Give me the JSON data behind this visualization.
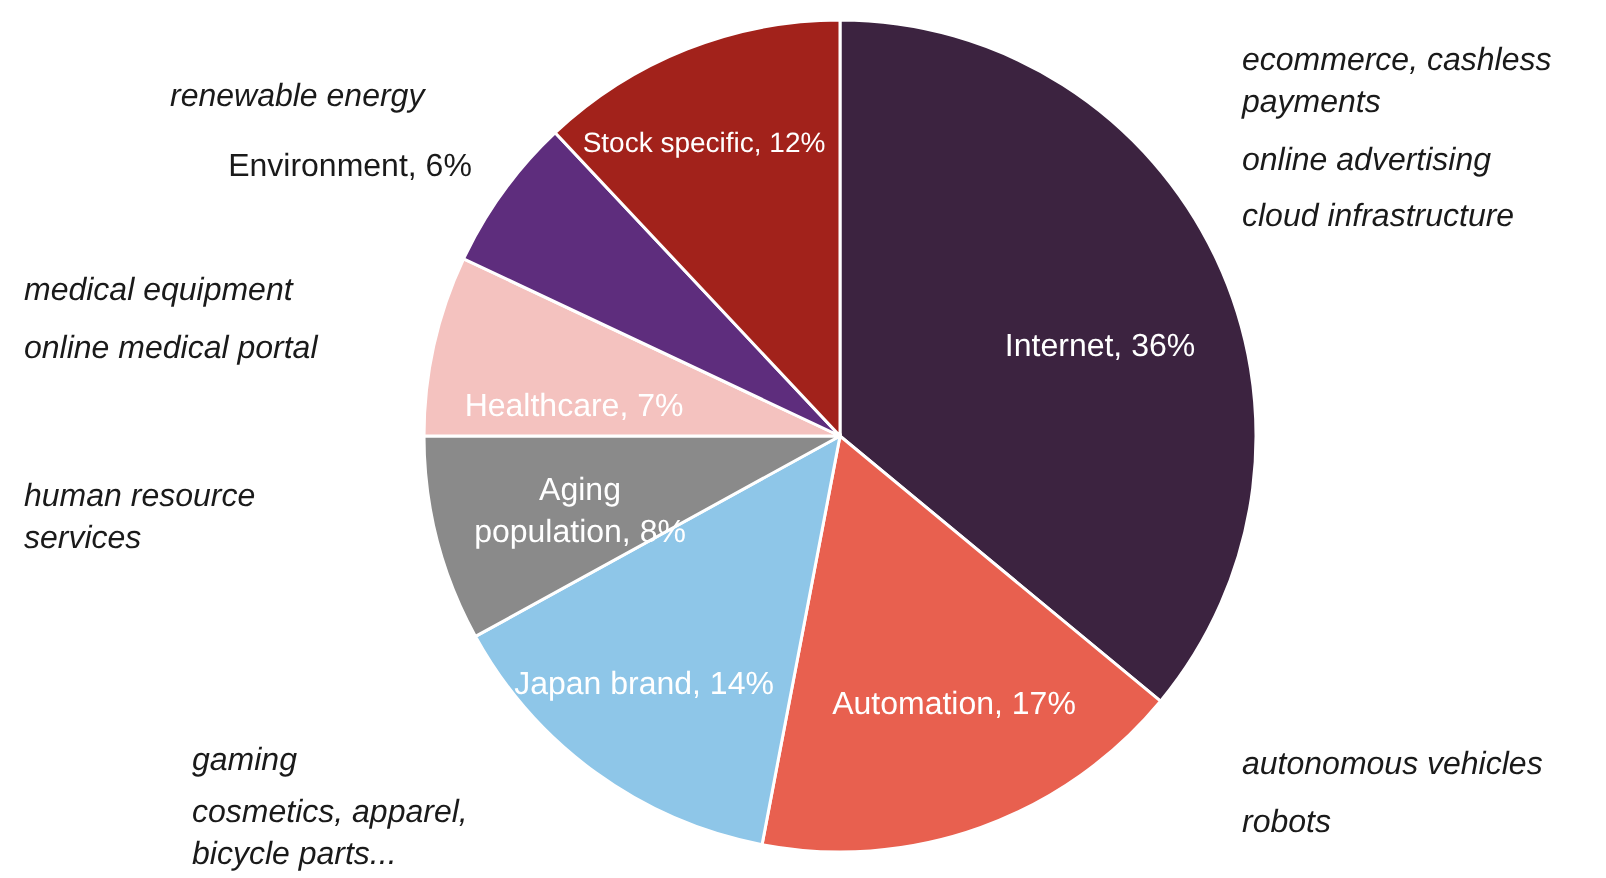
{
  "chart_data": {
    "type": "pie",
    "categories": [
      "Internet",
      "Automation",
      "Japan brand",
      "Aging population",
      "Healthcare",
      "Environment",
      "Stock specific"
    ],
    "values": [
      36,
      17,
      14,
      8,
      7,
      6,
      12
    ],
    "colors": [
      "#3c2340",
      "#e8604f",
      "#8ec6e8",
      "#8a8a8a",
      "#f4c2bf",
      "#5e2d7d",
      "#a2221b"
    ],
    "value_labels": [
      "36%",
      "17%",
      "14%",
      "8%",
      "7%",
      "6%",
      "12%"
    ],
    "annotations": [
      "ecommerce, cashless payments",
      "online advertising",
      "cloud infrastructure",
      "autonomous vehicles",
      "robots",
      "gaming",
      "cosmetics, apparel, bicycle parts...",
      "human resource services",
      "medical equipment",
      "online medical portal",
      "renewable energy"
    ]
  }
}
